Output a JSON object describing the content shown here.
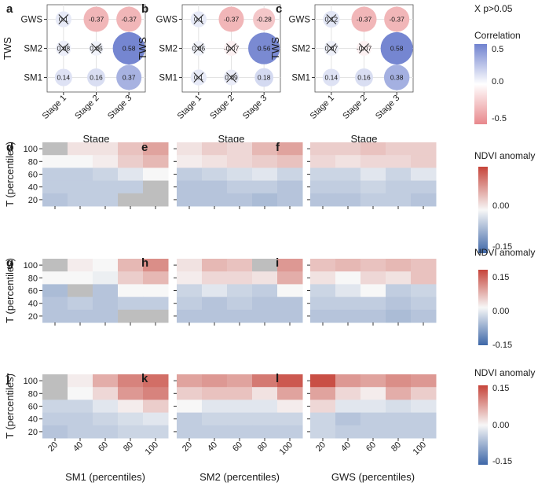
{
  "figure_title": "Correlation and NDVI anomaly composite figure",
  "chart_data": [
    {
      "panel": "a",
      "type": "bubble-correlation",
      "xlabel": "Stage",
      "ylabel": "TWS",
      "x_categories": [
        "Stage 1",
        "Stage 2",
        "Stage 3"
      ],
      "y_categories": [
        "GWS",
        "SM2",
        "SM1"
      ],
      "values": [
        [
          0.1,
          -0.37,
          -0.37
        ],
        [
          0.08,
          0.06,
          0.58
        ],
        [
          0.14,
          0.16,
          0.37
        ]
      ],
      "labels": [
        [
          "0.1",
          "-0.37",
          "-0.37"
        ],
        [
          "0.08",
          "0.06",
          "0.58"
        ],
        [
          "0.14",
          "0.16",
          "0.37"
        ]
      ],
      "crossed": [
        [
          true,
          false,
          false
        ],
        [
          true,
          true,
          false
        ],
        [
          false,
          false,
          false
        ]
      ]
    },
    {
      "panel": "b",
      "type": "bubble-correlation",
      "xlabel": "Stage",
      "ylabel": "TWS",
      "x_categories": [
        "Stage 1",
        "Stage 2",
        "Stage 3"
      ],
      "y_categories": [
        "GWS",
        "SM2",
        "SM1"
      ],
      "values": [
        [
          0.1,
          -0.37,
          -0.28
        ],
        [
          0.06,
          -0.07,
          0.56
        ],
        [
          0.1,
          0.09,
          0.18
        ]
      ],
      "labels": [
        [
          "0.1",
          "-0.37",
          "-0.28"
        ],
        [
          "0.06",
          "-0.07",
          "0.56"
        ],
        [
          "0.1",
          "0.09",
          "0.18"
        ]
      ],
      "crossed": [
        [
          true,
          false,
          false
        ],
        [
          true,
          true,
          false
        ],
        [
          true,
          true,
          false
        ]
      ]
    },
    {
      "panel": "c",
      "type": "bubble-correlation",
      "xlabel": "Stage",
      "ylabel": "TWS",
      "x_categories": [
        "Stage 1",
        "Stage 2",
        "Stage 3"
      ],
      "y_categories": [
        "GWS",
        "SM2",
        "SM1"
      ],
      "values": [
        [
          0.12,
          -0.37,
          -0.37
        ],
        [
          0.07,
          -0.07,
          0.58
        ],
        [
          0.14,
          0.16,
          0.38
        ]
      ],
      "labels": [
        [
          "0.12",
          "-0.37",
          "-0.37"
        ],
        [
          "0.07",
          "-0.07",
          "0.58"
        ],
        [
          "0.14",
          "0.16",
          "0.38"
        ]
      ],
      "crossed": [
        [
          true,
          false,
          false
        ],
        [
          true,
          true,
          false
        ],
        [
          false,
          false,
          false
        ]
      ]
    },
    {
      "panel": "d",
      "type": "heatmap",
      "xlabel": "",
      "ylabel": "T (percentiles)",
      "x_ticks": [
        20,
        40,
        60,
        80,
        100
      ],
      "y_ticks": [
        20,
        40,
        60,
        80,
        100
      ],
      "values": [
        [
          null,
          0.02,
          0.02,
          0.05,
          0.08
        ],
        [
          0.0,
          0.0,
          0.01,
          0.04,
          0.06
        ],
        [
          -0.05,
          -0.05,
          -0.04,
          -0.02,
          0.0
        ],
        [
          -0.05,
          -0.05,
          -0.05,
          -0.05,
          null
        ],
        [
          -0.06,
          -0.05,
          -0.05,
          null,
          null
        ]
      ]
    },
    {
      "panel": "e",
      "type": "heatmap",
      "xlabel": "",
      "ylabel": "",
      "x_ticks": [
        20,
        40,
        60,
        80,
        100
      ],
      "y_ticks": [
        20,
        40,
        60,
        80,
        100
      ],
      "values": [
        [
          0.02,
          0.04,
          0.03,
          0.06,
          0.08
        ],
        [
          0.01,
          0.02,
          0.03,
          0.04,
          0.05
        ],
        [
          -0.05,
          -0.04,
          -0.03,
          -0.02,
          -0.04
        ],
        [
          -0.06,
          -0.06,
          -0.05,
          -0.05,
          -0.06
        ],
        [
          -0.06,
          -0.06,
          -0.06,
          -0.07,
          -0.06
        ]
      ]
    },
    {
      "panel": "f",
      "type": "heatmap",
      "xlabel": "",
      "ylabel": "",
      "x_ticks": [
        20,
        40,
        60,
        80,
        100
      ],
      "y_ticks": [
        20,
        40,
        60,
        80,
        100
      ],
      "values": [
        [
          0.04,
          0.04,
          0.05,
          0.04,
          0.04
        ],
        [
          0.03,
          0.02,
          0.03,
          0.03,
          0.04
        ],
        [
          -0.04,
          -0.04,
          -0.02,
          -0.04,
          -0.02
        ],
        [
          -0.05,
          -0.05,
          -0.04,
          -0.05,
          -0.05
        ],
        [
          -0.06,
          -0.06,
          -0.05,
          -0.05,
          -0.06
        ]
      ]
    },
    {
      "panel": "g",
      "type": "heatmap",
      "xlabel": "",
      "ylabel": "T (percentiles)",
      "x_ticks": [
        20,
        40,
        60,
        80,
        100
      ],
      "y_ticks": [
        20,
        40,
        60,
        80,
        100
      ],
      "values": [
        [
          null,
          0.01,
          0.0,
          0.06,
          0.1
        ],
        [
          0.0,
          0.0,
          -0.01,
          0.04,
          0.06
        ],
        [
          -0.07,
          null,
          -0.06,
          0.0,
          0.0
        ],
        [
          -0.06,
          -0.05,
          -0.06,
          -0.05,
          -0.05
        ],
        [
          -0.06,
          -0.06,
          -0.06,
          null,
          null
        ]
      ]
    },
    {
      "panel": "h",
      "type": "heatmap",
      "xlabel": "",
      "ylabel": "",
      "x_ticks": [
        20,
        40,
        60,
        80,
        100
      ],
      "y_ticks": [
        20,
        40,
        60,
        80,
        100
      ],
      "values": [
        [
          0.02,
          0.06,
          0.05,
          null,
          0.09
        ],
        [
          0.01,
          0.03,
          0.03,
          0.02,
          0.07
        ],
        [
          -0.04,
          -0.02,
          -0.04,
          -0.05,
          0.0
        ],
        [
          -0.05,
          -0.06,
          -0.05,
          -0.06,
          -0.06
        ],
        [
          -0.06,
          -0.06,
          -0.06,
          -0.06,
          -0.06
        ]
      ]
    },
    {
      "panel": "i",
      "type": "heatmap",
      "xlabel": "",
      "ylabel": "",
      "x_ticks": [
        20,
        40,
        60,
        80,
        100
      ],
      "y_ticks": [
        20,
        40,
        60,
        80,
        100
      ],
      "values": [
        [
          0.05,
          0.06,
          0.05,
          0.06,
          0.05
        ],
        [
          0.02,
          0.0,
          0.03,
          0.02,
          0.05
        ],
        [
          -0.04,
          -0.02,
          0.0,
          -0.05,
          -0.04
        ],
        [
          -0.05,
          -0.05,
          -0.05,
          -0.06,
          -0.05
        ],
        [
          -0.06,
          -0.06,
          -0.06,
          -0.07,
          -0.06
        ]
      ]
    },
    {
      "panel": "j",
      "type": "heatmap",
      "xlabel": "SM1 (percentiles)",
      "ylabel": "T (percentiles)",
      "x_ticks": [
        20,
        40,
        60,
        80,
        100
      ],
      "y_ticks": [
        20,
        40,
        60,
        80,
        100
      ],
      "values": [
        [
          null,
          0.01,
          0.07,
          0.11,
          0.13
        ],
        [
          null,
          0.0,
          0.03,
          0.09,
          0.11
        ],
        [
          -0.04,
          -0.04,
          -0.02,
          0.01,
          0.04
        ],
        [
          -0.05,
          -0.05,
          -0.04,
          -0.03,
          -0.02
        ],
        [
          -0.06,
          -0.05,
          -0.05,
          -0.04,
          -0.04
        ]
      ]
    },
    {
      "panel": "k",
      "type": "heatmap",
      "xlabel": "SM2 (percentiles)",
      "ylabel": "",
      "x_ticks": [
        20,
        40,
        60,
        80,
        100
      ],
      "y_ticks": [
        20,
        40,
        60,
        80,
        100
      ],
      "values": [
        [
          0.08,
          0.09,
          0.08,
          0.12,
          0.15
        ],
        [
          0.04,
          0.05,
          0.05,
          0.02,
          0.08
        ],
        [
          0.0,
          -0.02,
          -0.02,
          -0.02,
          0.01
        ],
        [
          -0.05,
          -0.04,
          -0.04,
          -0.04,
          -0.04
        ],
        [
          -0.05,
          -0.05,
          -0.05,
          -0.05,
          -0.05
        ]
      ]
    },
    {
      "panel": "l",
      "type": "heatmap",
      "xlabel": "GWS (percentiles)",
      "ylabel": "",
      "x_ticks": [
        20,
        40,
        60,
        80,
        100
      ],
      "y_ticks": [
        20,
        40,
        60,
        80,
        100
      ],
      "values": [
        [
          0.16,
          0.09,
          0.08,
          0.1,
          0.09
        ],
        [
          0.08,
          0.03,
          0.01,
          0.07,
          0.04
        ],
        [
          0.03,
          -0.02,
          -0.02,
          -0.03,
          -0.02
        ],
        [
          -0.04,
          -0.06,
          -0.05,
          -0.05,
          -0.05
        ],
        [
          -0.04,
          -0.05,
          -0.05,
          -0.05,
          -0.05
        ]
      ]
    }
  ],
  "correlation_legend": {
    "note": "X p>0.05",
    "title": "Correlation",
    "ticks": [
      0.5,
      0.0,
      -0.5
    ],
    "tick_labels": [
      "0.5",
      "0.0",
      "-0.5"
    ],
    "range": [
      -0.6,
      0.6
    ],
    "colors": {
      "neg": "#e8888c",
      "mid": "#ffffff",
      "pos": "#7082cf"
    }
  },
  "ndvi_legend": {
    "title": "NDVI anomaly",
    "ticks": [
      0.15,
      0.0,
      -0.15
    ],
    "tick_labels": [
      "0.15",
      "0.00",
      "-0.15"
    ],
    "range": [
      -0.17,
      0.17
    ],
    "colors": {
      "neg": "#3e67a8",
      "mid": "#f7f7f7",
      "pos": "#c6443a",
      "na": "#bebebe"
    }
  }
}
